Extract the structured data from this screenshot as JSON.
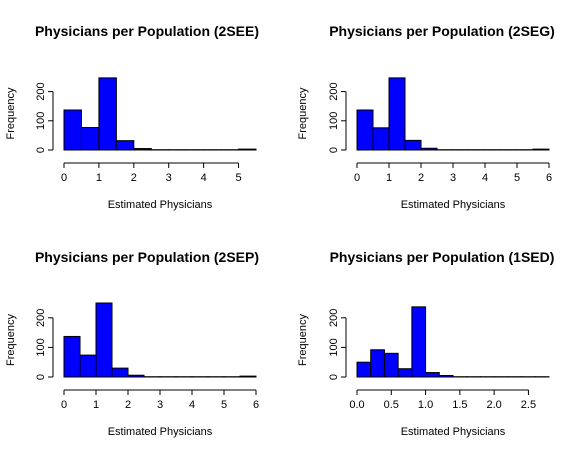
{
  "chart_data": [
    {
      "type": "histogram",
      "title": "Physicians per Population (2SEE)",
      "xlabel": "Estimated Physicians",
      "ylabel": "Frequency",
      "bar_color": "#0000ff",
      "bin_width": 0.5,
      "bins": [
        [
          0,
          0.5
        ],
        [
          0.5,
          1
        ],
        [
          1,
          1.5
        ],
        [
          1.5,
          2
        ],
        [
          2,
          2.5
        ],
        [
          2.5,
          3
        ],
        [
          3,
          3.5
        ],
        [
          3.5,
          4
        ],
        [
          4,
          4.5
        ],
        [
          4.5,
          5
        ],
        [
          5,
          5.5
        ]
      ],
      "values": [
        137,
        77,
        247,
        32,
        5,
        1,
        1,
        1,
        1,
        1,
        3
      ],
      "xlim": [
        0,
        5.5
      ],
      "ylim": [
        0,
        250
      ],
      "x_ticks": [
        0,
        1,
        2,
        3,
        4,
        5
      ],
      "x_tick_labels": [
        "0",
        "1",
        "2",
        "3",
        "4",
        "5"
      ],
      "y_ticks": [
        0,
        100,
        200
      ],
      "y_tick_labels": [
        "0",
        "100",
        "200"
      ]
    },
    {
      "type": "histogram",
      "title": "Physicians per Population (2SEG)",
      "xlabel": "Estimated Physicians",
      "ylabel": "Frequency",
      "bar_color": "#0000ff",
      "bin_width": 0.5,
      "bins": [
        [
          0,
          0.5
        ],
        [
          0.5,
          1
        ],
        [
          1,
          1.5
        ],
        [
          1.5,
          2
        ],
        [
          2,
          2.5
        ],
        [
          2.5,
          3
        ],
        [
          3,
          3.5
        ],
        [
          3.5,
          4
        ],
        [
          4,
          4.5
        ],
        [
          4.5,
          5
        ],
        [
          5,
          5.5
        ],
        [
          5.5,
          6
        ]
      ],
      "values": [
        137,
        76,
        247,
        33,
        6,
        1,
        1,
        1,
        1,
        1,
        1,
        3
      ],
      "xlim": [
        0,
        6
      ],
      "ylim": [
        0,
        250
      ],
      "x_ticks": [
        0,
        1,
        2,
        3,
        4,
        5,
        6
      ],
      "x_tick_labels": [
        "0",
        "1",
        "2",
        "3",
        "4",
        "5",
        "6"
      ],
      "y_ticks": [
        0,
        100,
        200
      ],
      "y_tick_labels": [
        "0",
        "100",
        "200"
      ]
    },
    {
      "type": "histogram",
      "title": "Physicians per Population (2SEP)",
      "xlabel": "Estimated Physicians",
      "ylabel": "Frequency",
      "bar_color": "#0000ff",
      "bin_width": 0.5,
      "bins": [
        [
          0,
          0.5
        ],
        [
          0.5,
          1
        ],
        [
          1,
          1.5
        ],
        [
          1.5,
          2
        ],
        [
          2,
          2.5
        ],
        [
          2.5,
          3
        ],
        [
          3,
          3.5
        ],
        [
          3.5,
          4
        ],
        [
          4,
          4.5
        ],
        [
          4.5,
          5
        ],
        [
          5,
          5.5
        ],
        [
          5.5,
          6
        ]
      ],
      "values": [
        137,
        74,
        250,
        30,
        6,
        1,
        1,
        1,
        1,
        1,
        1,
        3
      ],
      "xlim": [
        0,
        6
      ],
      "ylim": [
        0,
        250
      ],
      "x_ticks": [
        0,
        1,
        2,
        3,
        4,
        5,
        6
      ],
      "x_tick_labels": [
        "0",
        "1",
        "2",
        "3",
        "4",
        "5",
        "6"
      ],
      "y_ticks": [
        0,
        100,
        200
      ],
      "y_tick_labels": [
        "0",
        "100",
        "200"
      ]
    },
    {
      "type": "histogram",
      "title": "Physicians per Population (1SED)",
      "xlabel": "Estimated Physicians",
      "ylabel": "Frequency",
      "bar_color": "#0000ff",
      "bin_width": 0.2,
      "bins": [
        [
          0,
          0.2
        ],
        [
          0.2,
          0.4
        ],
        [
          0.4,
          0.6
        ],
        [
          0.6,
          0.8
        ],
        [
          0.8,
          1.0
        ],
        [
          1.0,
          1.2
        ],
        [
          1.2,
          1.4
        ],
        [
          1.4,
          1.6
        ],
        [
          1.6,
          1.8
        ],
        [
          1.8,
          2.0
        ],
        [
          2.0,
          2.2
        ],
        [
          2.2,
          2.4
        ],
        [
          2.4,
          2.6
        ],
        [
          2.6,
          2.8
        ]
      ],
      "values": [
        50,
        92,
        80,
        28,
        237,
        15,
        5,
        1,
        1,
        1,
        1,
        1,
        1,
        1
      ],
      "xlim": [
        0,
        2.8
      ],
      "ylim": [
        0,
        250
      ],
      "x_ticks": [
        0,
        0.5,
        1.0,
        1.5,
        2.0,
        2.5
      ],
      "x_tick_labels": [
        "0.0",
        "0.5",
        "1.0",
        "1.5",
        "2.0",
        "2.5"
      ],
      "y_ticks": [
        0,
        100,
        200
      ],
      "y_tick_labels": [
        "0",
        "100",
        "200"
      ]
    }
  ]
}
